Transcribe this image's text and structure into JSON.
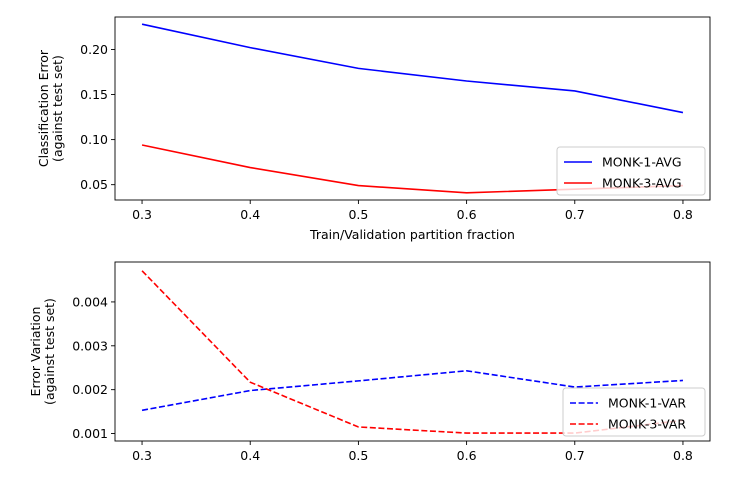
{
  "chart_data": [
    {
      "type": "line",
      "xlabel": "Train/Validation partition fraction",
      "ylabel_line1": "Classification Error",
      "ylabel_line2": "(against test set)",
      "x": [
        0.3,
        0.4,
        0.5,
        0.6,
        0.7,
        0.8
      ],
      "xlim": [
        0.275,
        0.825
      ],
      "ylim": [
        0.033,
        0.236
      ],
      "xticks": [
        0.3,
        0.4,
        0.5,
        0.6,
        0.7,
        0.8
      ],
      "xtick_labels": [
        "0.3",
        "0.4",
        "0.5",
        "0.6",
        "0.7",
        "0.8"
      ],
      "yticks": [
        0.05,
        0.1,
        0.15,
        0.2
      ],
      "ytick_labels": [
        "0.05",
        "0.10",
        "0.15",
        "0.20"
      ],
      "grid": false,
      "legend_position": "lower-right",
      "series": [
        {
          "name": "MONK-1-AVG",
          "color": "#0000ff",
          "dash": "solid",
          "values": [
            0.228,
            0.202,
            0.179,
            0.165,
            0.154,
            0.13
          ]
        },
        {
          "name": "MONK-3-AVG",
          "color": "#ff0000",
          "dash": "solid",
          "values": [
            0.094,
            0.069,
            0.049,
            0.041,
            0.045,
            0.049
          ]
        }
      ]
    },
    {
      "type": "line",
      "xlabel": "",
      "ylabel_line1": "Error Variation",
      "ylabel_line2": "(against test set)",
      "x": [
        0.3,
        0.4,
        0.5,
        0.6,
        0.7,
        0.8
      ],
      "xlim": [
        0.275,
        0.825
      ],
      "ylim": [
        0.00083,
        0.00491
      ],
      "xticks": [
        0.3,
        0.4,
        0.5,
        0.6,
        0.7,
        0.8
      ],
      "xtick_labels": [
        "0.3",
        "0.4",
        "0.5",
        "0.6",
        "0.7",
        "0.8"
      ],
      "yticks": [
        0.001,
        0.002,
        0.003,
        0.004
      ],
      "ytick_labels": [
        "0.001",
        "0.002",
        "0.003",
        "0.004"
      ],
      "grid": false,
      "legend_position": "lower-right",
      "series": [
        {
          "name": "MONK-1-VAR",
          "color": "#0000ff",
          "dash": "dashed",
          "values": [
            0.00153,
            0.00198,
            0.0022,
            0.00243,
            0.00206,
            0.00221
          ]
        },
        {
          "name": "MONK-3-VAR",
          "color": "#ff0000",
          "dash": "dashed",
          "values": [
            0.00471,
            0.00217,
            0.00115,
            0.00101,
            0.00101,
            0.0013
          ]
        }
      ]
    }
  ]
}
